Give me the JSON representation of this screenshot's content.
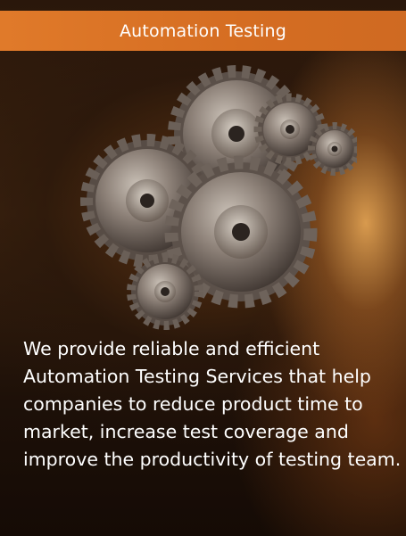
{
  "header": {
    "title": "Automation Testing"
  },
  "illustration": {
    "icon": "gears-icon"
  },
  "description": {
    "lines": [
      "We provide reliable and efficient",
      "Automation Testing Services that help",
      "companies to reduce product time to",
      "market, increase test coverage and",
      "improve the productivity of testing team."
    ]
  },
  "colors": {
    "header_background": "#d56d22",
    "header_text": "#ffffff",
    "body_text": "#ffffff"
  }
}
